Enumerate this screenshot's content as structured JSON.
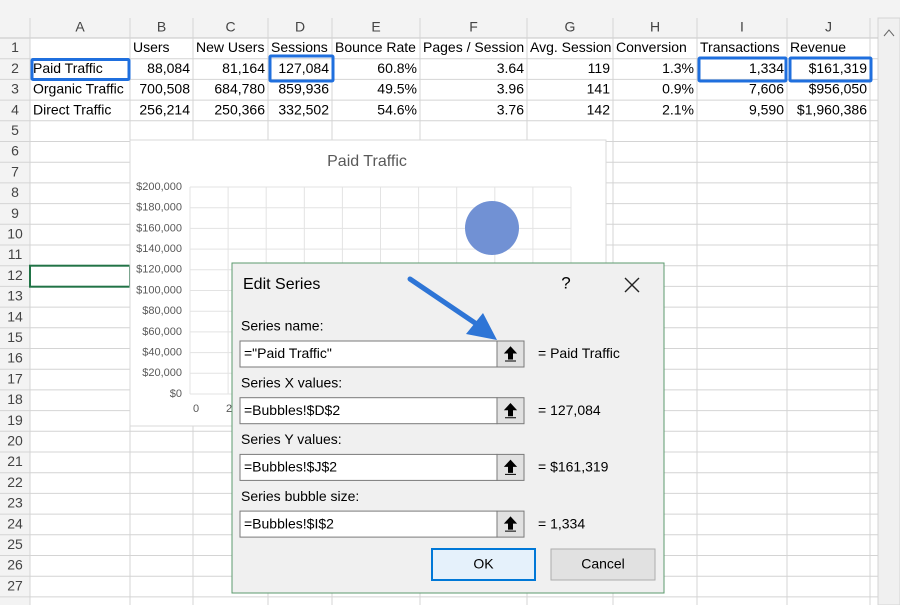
{
  "sheet": {
    "columns": [
      "A",
      "B",
      "C",
      "D",
      "E",
      "F",
      "G",
      "H",
      "I",
      "J"
    ],
    "rows": [
      1,
      2,
      3,
      4,
      5,
      6,
      7,
      8,
      9,
      10,
      11,
      12,
      13,
      14,
      15,
      16,
      17,
      18,
      19,
      20,
      21,
      22,
      23,
      24,
      25,
      26,
      27
    ],
    "headers": [
      "Users",
      "New Users",
      "Sessions",
      "Bounce Rate",
      "Pages / Session",
      "Avg. Session",
      "Conversion",
      "Transactions",
      "Revenue"
    ],
    "data": [
      [
        "Paid Traffic",
        "88,084",
        "81,164",
        "127,084",
        "60.8%",
        "3.64",
        "119",
        "1.3%",
        "1,334",
        "$161,319"
      ],
      [
        "Organic Traffic",
        "700,508",
        "684,780",
        "859,936",
        "49.5%",
        "3.96",
        "141",
        "0.9%",
        "7,606",
        "$956,050"
      ],
      [
        "Direct Traffic",
        "256,214",
        "250,366",
        "332,502",
        "54.6%",
        "3.76",
        "142",
        "2.1%",
        "9,590",
        "$1,960,386"
      ]
    ]
  },
  "chart": {
    "title": "Paid Traffic",
    "y_axis_labels": [
      "$200,000",
      "$180,000",
      "$160,000",
      "$140,000",
      "$120,000",
      "$100,000",
      "$80,000",
      "$60,000",
      "$40,000",
      "$20,000",
      "$0"
    ],
    "x_axis_labels": [
      "0",
      "2"
    ]
  },
  "dialog": {
    "title": "Edit Series",
    "help": "?",
    "fields": [
      {
        "label": "Series name:",
        "value": "=\"Paid Traffic\"",
        "result": "= Paid Traffic"
      },
      {
        "label": "Series X values:",
        "value": "=Bubbles!$D$2",
        "result": "= 127,084"
      },
      {
        "label": "Series Y values:",
        "value": "=Bubbles!$J$2",
        "result": "= $161,319"
      },
      {
        "label": "Series bubble size:",
        "value": "=Bubbles!$I$2",
        "result": "= 1,334"
      }
    ],
    "ok": "OK",
    "cancel": "Cancel"
  }
}
